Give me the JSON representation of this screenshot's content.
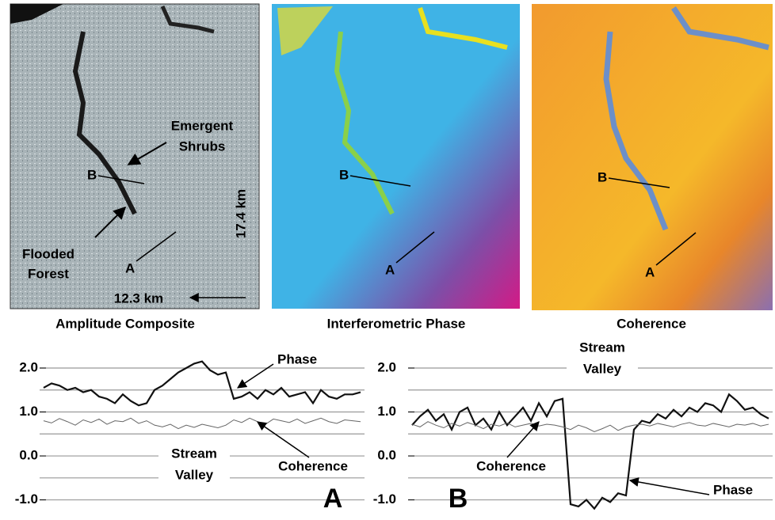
{
  "panels": [
    {
      "caption": "Amplitude Composite",
      "labels": {
        "emergent": [
          "Emergent",
          "Shrubs"
        ],
        "b": "B",
        "flooded": [
          "Flooded",
          "Forest"
        ],
        "a": "A",
        "height": "17.4 km",
        "width": "12.3 km"
      }
    },
    {
      "caption": "Interferometric Phase",
      "labels": {
        "b": "B",
        "a": "A"
      }
    },
    {
      "caption": "Coherence",
      "labels": {
        "b": "B",
        "a": "A"
      }
    }
  ],
  "chart_data": [
    {
      "type": "line",
      "panel_label": "A",
      "annotation": [
        "Stream",
        "Valley"
      ],
      "x": [
        0,
        1,
        2,
        3,
        4,
        5,
        6,
        7,
        8,
        9,
        10,
        11,
        12,
        13,
        14,
        15,
        16,
        17,
        18,
        19,
        20,
        21,
        22,
        23,
        24,
        25,
        26,
        27,
        28,
        29,
        30,
        31,
        32,
        33,
        34,
        35,
        36,
        37,
        38,
        39,
        40
      ],
      "xlim": [
        0,
        40
      ],
      "ylim": [
        -1.35,
        2.45
      ],
      "yticks": [
        {
          "value": 2,
          "label": "2.0"
        },
        {
          "value": 1,
          "label": "1.0"
        },
        {
          "value": 0,
          "label": "0.0"
        },
        {
          "value": -1,
          "label": "-1.0"
        }
      ],
      "grid_lines": [
        -1,
        -0.5,
        0,
        0.5,
        1,
        1.5,
        2
      ],
      "series": [
        {
          "name": "Phase",
          "color": "#111111",
          "line_width": 2.2,
          "values": [
            1.55,
            1.65,
            1.6,
            1.5,
            1.55,
            1.45,
            1.5,
            1.35,
            1.3,
            1.2,
            1.4,
            1.25,
            1.15,
            1.2,
            1.5,
            1.6,
            1.75,
            1.9,
            2.0,
            2.1,
            2.15,
            1.95,
            1.85,
            1.9,
            1.3,
            1.35,
            1.45,
            1.3,
            1.5,
            1.4,
            1.55,
            1.35,
            1.4,
            1.45,
            1.2,
            1.5,
            1.35,
            1.3,
            1.4,
            1.4,
            1.45
          ]
        },
        {
          "name": "Coherence",
          "color": "#666666",
          "line_width": 1,
          "values": [
            0.8,
            0.75,
            0.85,
            0.78,
            0.7,
            0.82,
            0.76,
            0.84,
            0.72,
            0.8,
            0.78,
            0.86,
            0.74,
            0.8,
            0.7,
            0.66,
            0.72,
            0.62,
            0.7,
            0.65,
            0.72,
            0.68,
            0.64,
            0.7,
            0.82,
            0.76,
            0.86,
            0.78,
            0.72,
            0.84,
            0.8,
            0.76,
            0.84,
            0.74,
            0.8,
            0.86,
            0.78,
            0.74,
            0.82,
            0.8,
            0.78
          ]
        }
      ]
    },
    {
      "type": "line",
      "panel_label": "B",
      "annotation": [
        "Stream",
        "Valley"
      ],
      "x": [
        0,
        1,
        2,
        3,
        4,
        5,
        6,
        7,
        8,
        9,
        10,
        11,
        12,
        13,
        14,
        15,
        16,
        17,
        18,
        19,
        20,
        21,
        22,
        23,
        24,
        25,
        26,
        27,
        28,
        29,
        30,
        31,
        32,
        33,
        34,
        35,
        36,
        37,
        38,
        39,
        40,
        41,
        42,
        43,
        44,
        45
      ],
      "xlim": [
        0,
        45
      ],
      "ylim": [
        -1.35,
        2.45
      ],
      "yticks": [
        {
          "value": 2,
          "label": "2.0"
        },
        {
          "value": 1,
          "label": "1.0"
        },
        {
          "value": 0,
          "label": "0.0"
        },
        {
          "value": -1,
          "label": "-1.0"
        }
      ],
      "grid_lines": [
        -1,
        -0.5,
        0,
        0.5,
        1,
        1.5,
        2
      ],
      "series": [
        {
          "name": "Phase",
          "color": "#111111",
          "line_width": 2.2,
          "values": [
            0.7,
            0.9,
            1.05,
            0.8,
            0.95,
            0.6,
            1.0,
            1.1,
            0.7,
            0.85,
            0.6,
            1.0,
            0.7,
            0.9,
            1.1,
            0.8,
            1.2,
            0.9,
            1.25,
            1.3,
            -1.1,
            -1.15,
            -1.0,
            -1.2,
            -0.95,
            -1.05,
            -0.85,
            -0.9,
            0.6,
            0.8,
            0.75,
            0.95,
            0.85,
            1.05,
            0.9,
            1.1,
            1.0,
            1.2,
            1.15,
            1.0,
            1.4,
            1.25,
            1.05,
            1.1,
            0.95,
            0.85
          ]
        },
        {
          "name": "Coherence",
          "color": "#666666",
          "line_width": 1,
          "values": [
            0.72,
            0.66,
            0.78,
            0.7,
            0.64,
            0.74,
            0.68,
            0.76,
            0.7,
            0.62,
            0.72,
            0.68,
            0.75,
            0.66,
            0.7,
            0.74,
            0.68,
            0.72,
            0.7,
            0.66,
            0.6,
            0.7,
            0.64,
            0.55,
            0.62,
            0.7,
            0.58,
            0.66,
            0.7,
            0.72,
            0.68,
            0.74,
            0.7,
            0.66,
            0.72,
            0.76,
            0.7,
            0.68,
            0.74,
            0.7,
            0.66,
            0.72,
            0.7,
            0.74,
            0.68,
            0.72
          ]
        }
      ]
    }
  ]
}
